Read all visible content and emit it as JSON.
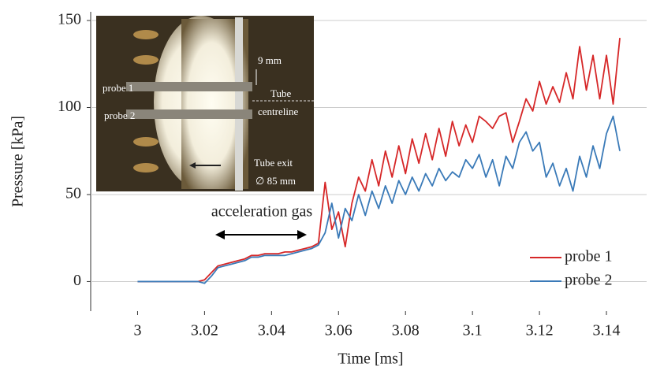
{
  "chart_data": {
    "type": "line",
    "xlabel": "Time [ms]",
    "ylabel": "Pressure [kPa]",
    "x": [
      3.0,
      3.002,
      3.004,
      3.006,
      3.008,
      3.01,
      3.012,
      3.014,
      3.016,
      3.018,
      3.02,
      3.022,
      3.024,
      3.026,
      3.028,
      3.03,
      3.032,
      3.034,
      3.036,
      3.038,
      3.04,
      3.042,
      3.044,
      3.046,
      3.048,
      3.05,
      3.052,
      3.054,
      3.056,
      3.058,
      3.06,
      3.062,
      3.064,
      3.066,
      3.068,
      3.07,
      3.072,
      3.074,
      3.076,
      3.078,
      3.08,
      3.082,
      3.084,
      3.086,
      3.088,
      3.09,
      3.092,
      3.094,
      3.096,
      3.098,
      3.1,
      3.102,
      3.104,
      3.106,
      3.108,
      3.11,
      3.112,
      3.114,
      3.116,
      3.118,
      3.12,
      3.122,
      3.124,
      3.126,
      3.128,
      3.13,
      3.132,
      3.134,
      3.136,
      3.138,
      3.14,
      3.142,
      3.144
    ],
    "series": [
      {
        "name": "probe 1",
        "color": "#d62728",
        "values": [
          0,
          0,
          0,
          0,
          0,
          0,
          0,
          0,
          0,
          0,
          1,
          5,
          9,
          10,
          11,
          12,
          13,
          15,
          15,
          16,
          16,
          16,
          17,
          17,
          18,
          19,
          20,
          22,
          57,
          30,
          40,
          20,
          45,
          60,
          52,
          70,
          55,
          75,
          60,
          78,
          62,
          82,
          68,
          85,
          70,
          88,
          72,
          92,
          78,
          90,
          80,
          95,
          92,
          88,
          95,
          97,
          80,
          92,
          105,
          98,
          115,
          102,
          112,
          103,
          120,
          105,
          135,
          110,
          130,
          105,
          130,
          102,
          140
        ]
      },
      {
        "name": "probe 2",
        "color": "#3a7ab8",
        "values": [
          0,
          0,
          0,
          0,
          0,
          0,
          0,
          0,
          0,
          0,
          -1,
          3,
          8,
          9,
          10,
          11,
          12,
          14,
          14,
          15,
          15,
          15,
          15,
          16,
          17,
          18,
          19,
          21,
          28,
          45,
          25,
          42,
          35,
          50,
          38,
          52,
          42,
          55,
          45,
          58,
          50,
          60,
          52,
          62,
          55,
          65,
          58,
          63,
          60,
          70,
          65,
          73,
          60,
          70,
          55,
          72,
          65,
          80,
          86,
          75,
          80,
          60,
          68,
          55,
          65,
          52,
          72,
          60,
          78,
          65,
          85,
          95,
          75
        ]
      }
    ],
    "xlim": [
      2.986,
      3.152
    ],
    "xticks": [
      3,
      3.02,
      3.04,
      3.06,
      3.08,
      3.1,
      3.12,
      3.14
    ],
    "ylim": [
      -17,
      155
    ],
    "yticks": [
      0,
      50,
      100,
      150
    ],
    "grid": true,
    "legend": "lower right",
    "annotations": [
      "acceleration gas"
    ],
    "inset_labels": [
      "probe 1",
      "probe 2",
      "9 mm",
      "Tube",
      "centreline",
      "Tube exit",
      "∅ 85 mm"
    ]
  }
}
